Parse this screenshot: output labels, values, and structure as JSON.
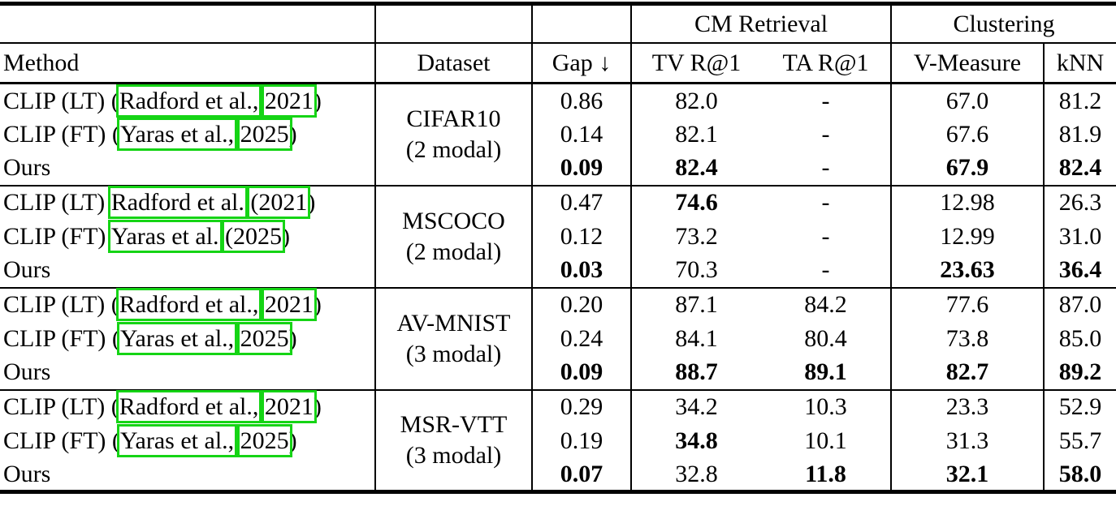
{
  "page": {
    "background": "#ffffff",
    "text_color": "#000000",
    "citation_box_color": "#15d415"
  },
  "table": {
    "group_headers": [
      {
        "label": "CM Retrieval"
      },
      {
        "label": "Clustering"
      }
    ],
    "columns": [
      {
        "label": "Method"
      },
      {
        "label": "Dataset"
      },
      {
        "label": "Gap ↓"
      },
      {
        "label": "TV R@1"
      },
      {
        "label": "TA R@1"
      },
      {
        "label": "V-Measure"
      },
      {
        "label": "kNN"
      }
    ],
    "blocks": [
      {
        "dataset_name": "CIFAR10",
        "dataset_modal": "(2 modal)",
        "rows": [
          {
            "method": [
              {
                "t": "CLIP (LT) ("
              },
              {
                "t": "Radford et al.,",
                "box": true
              },
              {
                "t": " "
              },
              {
                "t": "2021",
                "box": true
              },
              {
                "t": ")"
              }
            ],
            "values": [
              {
                "v": "0.86"
              },
              {
                "v": "82.0"
              },
              {
                "v": "-"
              },
              {
                "v": "67.0"
              },
              {
                "v": "81.2"
              }
            ]
          },
          {
            "method": [
              {
                "t": "CLIP (FT) ("
              },
              {
                "t": "Yaras et al.,",
                "box": true
              },
              {
                "t": " "
              },
              {
                "t": "2025",
                "box": true
              },
              {
                "t": ")"
              }
            ],
            "values": [
              {
                "v": "0.14"
              },
              {
                "v": "82.1"
              },
              {
                "v": "-"
              },
              {
                "v": "67.6"
              },
              {
                "v": "81.9"
              }
            ]
          },
          {
            "method": [
              {
                "t": "Ours"
              }
            ],
            "values": [
              {
                "v": "0.09",
                "b": true
              },
              {
                "v": "82.4",
                "b": true
              },
              {
                "v": "-"
              },
              {
                "v": "67.9",
                "b": true
              },
              {
                "v": "82.4",
                "b": true
              }
            ]
          }
        ]
      },
      {
        "dataset_name": "MSCOCO",
        "dataset_modal": "(2 modal)",
        "rows": [
          {
            "method": [
              {
                "t": "CLIP (LT) "
              },
              {
                "t": "Radford et al.",
                "box": true
              },
              {
                "t": " "
              },
              {
                "t": "(2021",
                "box": true
              },
              {
                "t": ")"
              }
            ],
            "values": [
              {
                "v": "0.47"
              },
              {
                "v": "74.6",
                "b": true
              },
              {
                "v": "-"
              },
              {
                "v": "12.98"
              },
              {
                "v": "26.3"
              }
            ]
          },
          {
            "method": [
              {
                "t": "CLIP (FT) "
              },
              {
                "t": "Yaras et al.",
                "box": true
              },
              {
                "t": " "
              },
              {
                "t": "(2025",
                "box": true
              },
              {
                "t": ")"
              }
            ],
            "values": [
              {
                "v": "0.12"
              },
              {
                "v": "73.2"
              },
              {
                "v": "-"
              },
              {
                "v": "12.99"
              },
              {
                "v": "31.0"
              }
            ]
          },
          {
            "method": [
              {
                "t": "Ours"
              }
            ],
            "values": [
              {
                "v": "0.03",
                "b": true
              },
              {
                "v": "70.3"
              },
              {
                "v": "-"
              },
              {
                "v": "23.63",
                "b": true
              },
              {
                "v": "36.4",
                "b": true
              }
            ]
          }
        ]
      },
      {
        "dataset_name": "AV-MNIST",
        "dataset_modal": "(3 modal)",
        "rows": [
          {
            "method": [
              {
                "t": "CLIP (LT) ("
              },
              {
                "t": "Radford et al.,",
                "box": true
              },
              {
                "t": " "
              },
              {
                "t": "2021",
                "box": true
              },
              {
                "t": ")"
              }
            ],
            "values": [
              {
                "v": "0.20"
              },
              {
                "v": "87.1"
              },
              {
                "v": "84.2"
              },
              {
                "v": "77.6"
              },
              {
                "v": "87.0"
              }
            ]
          },
          {
            "method": [
              {
                "t": "CLIP (FT) ("
              },
              {
                "t": "Yaras et al.,",
                "box": true
              },
              {
                "t": " "
              },
              {
                "t": "2025",
                "box": true
              },
              {
                "t": ")"
              }
            ],
            "values": [
              {
                "v": "0.24"
              },
              {
                "v": "84.1"
              },
              {
                "v": "80.4"
              },
              {
                "v": "73.8"
              },
              {
                "v": "85.0"
              }
            ]
          },
          {
            "method": [
              {
                "t": "Ours"
              }
            ],
            "values": [
              {
                "v": "0.09",
                "b": true
              },
              {
                "v": "88.7",
                "b": true
              },
              {
                "v": "89.1",
                "b": true
              },
              {
                "v": "82.7",
                "b": true
              },
              {
                "v": "89.2",
                "b": true
              }
            ]
          }
        ]
      },
      {
        "dataset_name": "MSR-VTT",
        "dataset_modal": "(3 modal)",
        "rows": [
          {
            "method": [
              {
                "t": "CLIP (LT) ("
              },
              {
                "t": "Radford et al.,",
                "box": true
              },
              {
                "t": " "
              },
              {
                "t": "2021",
                "box": true
              },
              {
                "t": ")"
              }
            ],
            "values": [
              {
                "v": "0.29"
              },
              {
                "v": "34.2"
              },
              {
                "v": "10.3"
              },
              {
                "v": "23.3"
              },
              {
                "v": "52.9"
              }
            ]
          },
          {
            "method": [
              {
                "t": "CLIP (FT) ("
              },
              {
                "t": "Yaras et al.,",
                "box": true
              },
              {
                "t": " "
              },
              {
                "t": "2025",
                "box": true
              },
              {
                "t": ")"
              }
            ],
            "values": [
              {
                "v": "0.19"
              },
              {
                "v": "34.8",
                "b": true
              },
              {
                "v": "10.1"
              },
              {
                "v": "31.3"
              },
              {
                "v": "55.7"
              }
            ]
          },
          {
            "method": [
              {
                "t": "Ours"
              }
            ],
            "values": [
              {
                "v": "0.07",
                "b": true
              },
              {
                "v": "32.8"
              },
              {
                "v": "11.8",
                "b": true
              },
              {
                "v": "32.1",
                "b": true
              },
              {
                "v": "58.0",
                "b": true
              }
            ]
          }
        ]
      }
    ]
  }
}
